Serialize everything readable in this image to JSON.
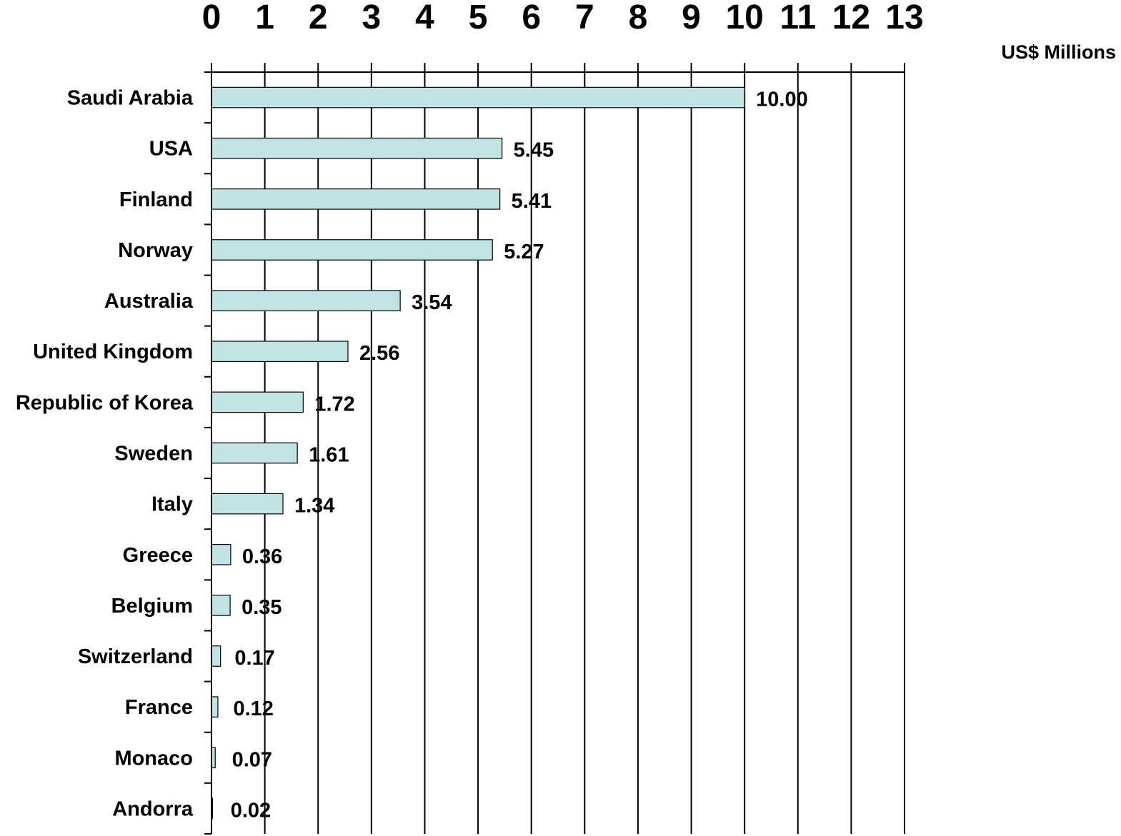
{
  "chart_data": {
    "type": "bar",
    "orientation": "horizontal",
    "title": "",
    "xlabel": "US$ Millions",
    "ylabel": "",
    "xlim": [
      0,
      13
    ],
    "x_ticks": [
      "0",
      "1",
      "2",
      "3",
      "4",
      "5",
      "6",
      "7",
      "8",
      "9",
      "10",
      "11",
      "12",
      "13"
    ],
    "grid": true,
    "legend": "none",
    "bar_color": "#c0e4e6",
    "categories": [
      "Saudi Arabia",
      "USA",
      "Finland",
      "Norway",
      "Australia",
      "United Kingdom",
      "Republic of Korea",
      "Sweden",
      "Italy",
      "Greece",
      "Belgium",
      "Switzerland",
      "France",
      "Monaco",
      "Andorra"
    ],
    "values": [
      10.0,
      5.45,
      5.41,
      5.27,
      3.54,
      2.56,
      1.72,
      1.61,
      1.34,
      0.36,
      0.35,
      0.17,
      0.12,
      0.07,
      0.02
    ],
    "value_labels": [
      "10.00",
      "5.45",
      "5.41",
      "5.27",
      "3.54",
      "2.56",
      "1.72",
      "1.61",
      "1.34",
      "0.36",
      "0.35",
      "0.17",
      "0.12",
      "0.07",
      "0.02"
    ]
  }
}
